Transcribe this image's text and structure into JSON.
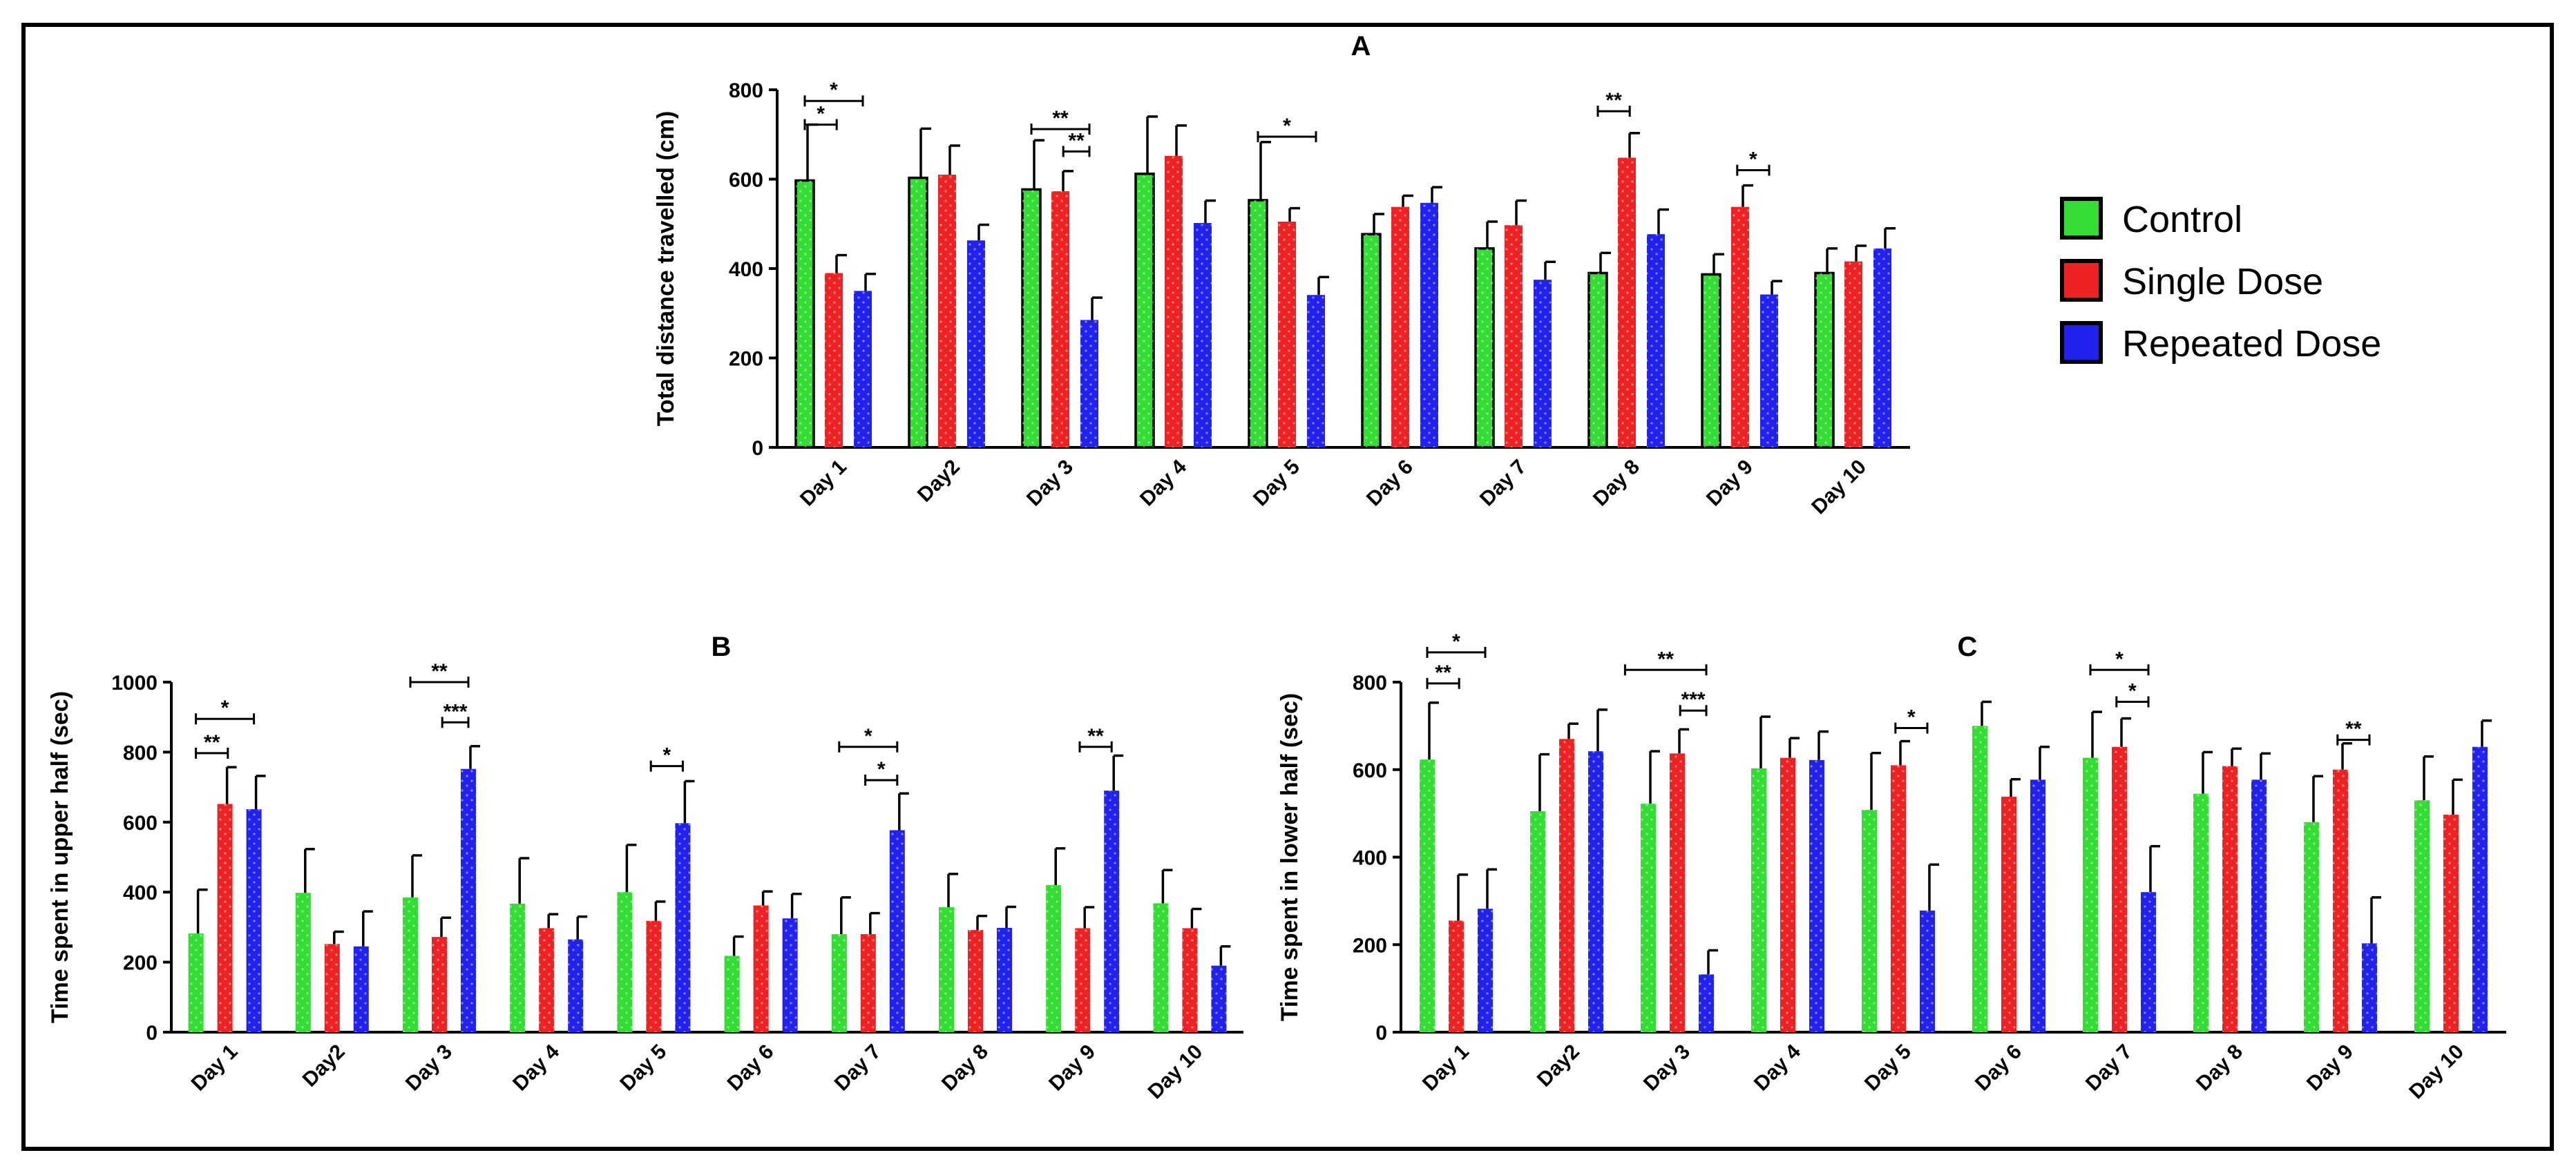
{
  "legend": [
    {
      "name": "Control",
      "color": "#33dd33"
    },
    {
      "name": "Single Dose",
      "color": "#ee2222"
    },
    {
      "name": "Repeated Dose",
      "color": "#2222ee"
    }
  ],
  "chart_data": [
    {
      "type": "bar",
      "id": "A",
      "title": "A",
      "xlabel": "",
      "ylabel": "Total distance travelled (cm)",
      "ylim": [
        0,
        800
      ],
      "yticks": [
        0,
        200,
        400,
        600,
        800
      ],
      "categories": [
        "Day 1",
        "Day2",
        "Day 3",
        "Day 4",
        "Day 5",
        "Day 6",
        "Day 7",
        "Day 8",
        "Day 9",
        "Day 10"
      ],
      "series": [
        {
          "name": "Control",
          "values": [
            597,
            603,
            577,
            612,
            553,
            477,
            445,
            390,
            387,
            390
          ],
          "errors": [
            125,
            110,
            110,
            128,
            130,
            45,
            60,
            45,
            45,
            55
          ]
        },
        {
          "name": "Single Dose",
          "values": [
            390,
            610,
            573,
            652,
            505,
            538,
            497,
            648,
            538,
            416
          ],
          "errors": [
            40,
            65,
            45,
            68,
            30,
            25,
            55,
            55,
            48,
            35
          ]
        },
        {
          "name": "Repeated Dose",
          "values": [
            350,
            463,
            285,
            502,
            341,
            547,
            375,
            477,
            342,
            445
          ],
          "errors": [
            38,
            35,
            50,
            50,
            40,
            35,
            40,
            55,
            30,
            45
          ]
        }
      ],
      "significance": [
        {
          "day": 0,
          "from": 0,
          "to": 1,
          "y": 775,
          "label": "*"
        },
        {
          "day": 0,
          "from": 0,
          "to": 0.55,
          "y": 722,
          "label": "*"
        },
        {
          "day": 2,
          "from": 0,
          "to": 1,
          "y": 712,
          "label": "**"
        },
        {
          "day": 2,
          "from": 0.55,
          "to": 1,
          "y": 662,
          "label": "**"
        },
        {
          "day": 4,
          "from": 0,
          "to": 1,
          "y": 695,
          "label": "*"
        },
        {
          "day": 7,
          "from": 0,
          "to": 0.55,
          "y": 752,
          "label": "**"
        },
        {
          "day": 8,
          "from": 0.45,
          "to": 1,
          "y": 620,
          "label": "*"
        }
      ]
    },
    {
      "type": "bar",
      "id": "B",
      "title": "B",
      "xlabel": "",
      "ylabel": "Time spent in upper half (sec)",
      "ylim": [
        0,
        1000
      ],
      "yticks": [
        0,
        200,
        400,
        600,
        800,
        1000
      ],
      "categories": [
        "Day 1",
        "Day2",
        "Day 3",
        "Day 4",
        "Day 5",
        "Day 6",
        "Day 7",
        "Day 8",
        "Day 9",
        "Day 10"
      ],
      "series": [
        {
          "name": "Control",
          "values": [
            282,
            398,
            385,
            367,
            400,
            218,
            280,
            357,
            420,
            368
          ],
          "errors": [
            125,
            125,
            120,
            130,
            135,
            55,
            105,
            95,
            105,
            95
          ]
        },
        {
          "name": "Single Dose",
          "values": [
            652,
            252,
            272,
            297,
            318,
            362,
            280,
            292,
            297,
            297
          ],
          "errors": [
            105,
            35,
            55,
            40,
            55,
            40,
            60,
            40,
            60,
            55
          ]
        },
        {
          "name": "Repeated Dose",
          "values": [
            637,
            245,
            752,
            265,
            597,
            325,
            577,
            298,
            690,
            190
          ],
          "errors": [
            95,
            100,
            65,
            65,
            120,
            70,
            105,
            60,
            100,
            55
          ]
        }
      ],
      "significance": [
        {
          "day": 0,
          "from": 0,
          "to": 1,
          "y": 895,
          "label": "*"
        },
        {
          "day": 0,
          "from": 0,
          "to": 0.55,
          "y": 797,
          "label": "**"
        },
        {
          "day": 2,
          "from": 0,
          "to": 1,
          "y": 1000,
          "label": "**"
        },
        {
          "day": 2,
          "from": 0.55,
          "to": 1,
          "y": 885,
          "label": "***"
        },
        {
          "day": 4,
          "from": 0.45,
          "to": 1,
          "y": 760,
          "label": "*"
        },
        {
          "day": 6,
          "from": 0,
          "to": 1,
          "y": 815,
          "label": "*"
        },
        {
          "day": 6,
          "from": 0.45,
          "to": 1,
          "y": 720,
          "label": "*"
        },
        {
          "day": 8,
          "from": 0.45,
          "to": 1,
          "y": 815,
          "label": "**"
        }
      ]
    },
    {
      "type": "bar",
      "id": "C",
      "title": "C",
      "xlabel": "",
      "ylabel": "Time spent in lower half (sec)",
      "ylim": [
        0,
        800
      ],
      "yticks": [
        0,
        200,
        400,
        600,
        800
      ],
      "categories": [
        "Day 1",
        "Day2",
        "Day 3",
        "Day 4",
        "Day 5",
        "Day 6",
        "Day 7",
        "Day 8",
        "Day 9",
        "Day 10"
      ],
      "series": [
        {
          "name": "Control",
          "values": [
            623,
            505,
            522,
            603,
            508,
            700,
            627,
            545,
            480,
            530
          ],
          "errors": [
            130,
            130,
            120,
            118,
            130,
            55,
            105,
            95,
            105,
            100
          ]
        },
        {
          "name": "Single Dose",
          "values": [
            255,
            670,
            637,
            627,
            610,
            538,
            652,
            608,
            600,
            497
          ],
          "errors": [
            105,
            35,
            55,
            45,
            55,
            40,
            65,
            40,
            60,
            80
          ]
        },
        {
          "name": "Repeated Dose",
          "values": [
            282,
            642,
            132,
            622,
            278,
            577,
            320,
            577,
            203,
            652
          ],
          "errors": [
            90,
            95,
            55,
            65,
            105,
            75,
            105,
            60,
            105,
            60
          ]
        }
      ],
      "significance": [
        {
          "day": 0,
          "from": 0,
          "to": 1,
          "y": 868,
          "label": "*"
        },
        {
          "day": 0,
          "from": 0,
          "to": 0.55,
          "y": 797,
          "label": "**"
        },
        {
          "day": 2,
          "from": -0.4,
          "to": 1,
          "y": 828,
          "label": "**"
        },
        {
          "day": 2,
          "from": 0.55,
          "to": 1,
          "y": 735,
          "label": "***"
        },
        {
          "day": 4,
          "from": 0.45,
          "to": 1,
          "y": 695,
          "label": "*"
        },
        {
          "day": 6,
          "from": 0,
          "to": 1,
          "y": 828,
          "label": "*"
        },
        {
          "day": 6,
          "from": 0.45,
          "to": 1,
          "y": 755,
          "label": "*"
        },
        {
          "day": 8,
          "from": 0.45,
          "to": 1,
          "y": 668,
          "label": "**"
        }
      ]
    }
  ]
}
